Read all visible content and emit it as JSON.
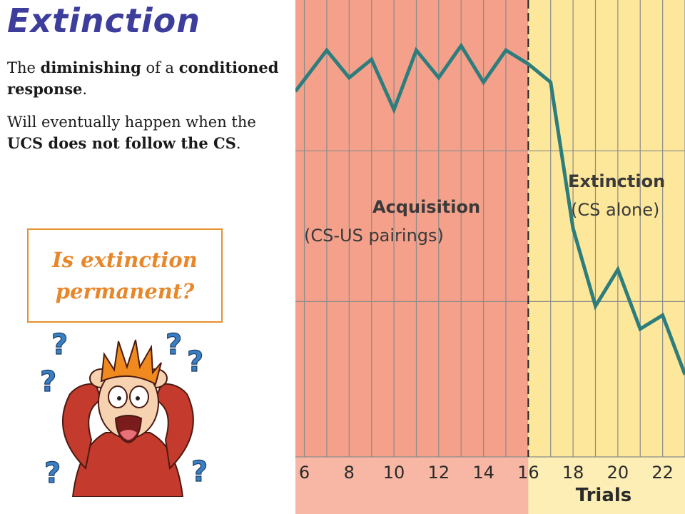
{
  "slide": {
    "title": "Extinction",
    "p1": {
      "t1": "The ",
      "b1": "diminishing",
      "t2": " of a ",
      "b2": "conditioned response",
      "t3": "."
    },
    "p2": {
      "t1": "Will eventually happen when the ",
      "b1": "UCS does not follow the CS",
      "t2": "."
    },
    "callout": "Is extinction permanent?",
    "figure_marks": "?"
  },
  "chart_data": {
    "type": "line",
    "xlabel": "Trials",
    "x_ticks": [
      6,
      8,
      10,
      12,
      14,
      16,
      18,
      20,
      22
    ],
    "xlim": [
      5.6,
      23.0
    ],
    "ylim": [
      0,
      100
    ],
    "phase_boundary": 16,
    "phases": [
      {
        "title": "Acquisition",
        "subtitle": "(CS-US pairings)",
        "color": "#f4a08a"
      },
      {
        "title": "Extinction",
        "subtitle": "(CS alone)",
        "color": "#fde79a"
      }
    ],
    "series": [
      {
        "color": "#2e7d7d",
        "x": [
          5.6,
          7,
          8,
          9,
          10,
          11,
          12,
          13,
          14,
          15,
          16,
          17,
          18,
          19,
          20,
          21,
          22,
          23
        ],
        "y": [
          80,
          89,
          83,
          87,
          76,
          89,
          83,
          90,
          82,
          89,
          86,
          82,
          50,
          33,
          41,
          28,
          31,
          18
        ]
      }
    ]
  }
}
